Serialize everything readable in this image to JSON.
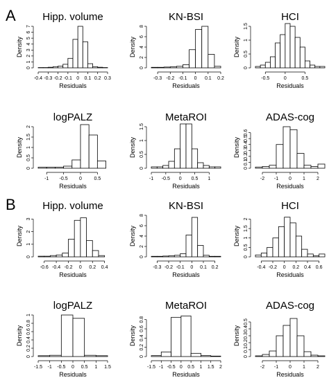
{
  "panels": [
    {
      "letter": "A",
      "charts": [
        0,
        1,
        2,
        3,
        4,
        5
      ]
    },
    {
      "letter": "B",
      "charts": [
        6,
        7,
        8,
        9,
        10,
        11
      ]
    }
  ],
  "chart_data": [
    {
      "panel": "A",
      "type": "bar",
      "title": "Hipp. volume",
      "xlabel": "Residuals",
      "ylabel": "Density",
      "xlim": [
        -0.4,
        0.3
      ],
      "ylim": [
        0,
        7
      ],
      "xticks": [
        -0.4,
        -0.3,
        -0.2,
        -0.1,
        0.0,
        0.1,
        0.2,
        0.3
      ],
      "yticks": [
        0,
        1,
        2,
        3,
        4,
        5,
        6,
        7
      ],
      "bin_edges": [
        -0.4,
        -0.35,
        -0.3,
        -0.25,
        -0.2,
        -0.15,
        -0.1,
        -0.05,
        0.0,
        0.05,
        0.1,
        0.15,
        0.2,
        0.25,
        0.3
      ],
      "values": [
        0.05,
        0.05,
        0.1,
        0.2,
        0.3,
        0.6,
        1.6,
        4.8,
        7.0,
        4.4,
        0.7,
        0.2,
        0.1,
        0.05
      ]
    },
    {
      "panel": "A",
      "type": "bar",
      "title": "KN-BSI",
      "xlabel": "Residuals",
      "ylabel": "Density",
      "xlim": [
        -0.35,
        0.2
      ],
      "ylim": [
        0,
        8
      ],
      "xticks": [
        -0.3,
        -0.2,
        -0.1,
        0.0,
        0.1,
        0.2
      ],
      "yticks": [
        0,
        2,
        4,
        6,
        8
      ],
      "bin_edges": [
        -0.35,
        -0.3,
        -0.25,
        -0.2,
        -0.15,
        -0.1,
        -0.05,
        0.0,
        0.05,
        0.1,
        0.15,
        0.2
      ],
      "values": [
        0.1,
        0.1,
        0.15,
        0.2,
        0.3,
        0.6,
        3.5,
        7.4,
        8.0,
        2.6,
        0.3
      ]
    },
    {
      "panel": "A",
      "type": "bar",
      "title": "HCI",
      "xlabel": "Residuals",
      "ylabel": "Density",
      "xlim": [
        -0.75,
        1.0
      ],
      "ylim": [
        0,
        1.5
      ],
      "xticks": [
        -0.5,
        0.0,
        0.5
      ],
      "yticks": [
        0.0,
        0.5,
        1.0,
        1.5
      ],
      "bin_edges": [
        -0.75,
        -0.625,
        -0.5,
        -0.375,
        -0.25,
        -0.125,
        0.0,
        0.125,
        0.25,
        0.375,
        0.5,
        0.625,
        0.75,
        0.875,
        1.0
      ],
      "values": [
        0.05,
        0.1,
        0.2,
        0.4,
        0.9,
        1.2,
        1.6,
        1.5,
        1.1,
        0.75,
        0.25,
        0.1,
        0.05,
        0.05
      ]
    },
    {
      "panel": "A",
      "type": "bar",
      "title": "logPALZ",
      "xlabel": "Residuals",
      "ylabel": "Density",
      "xlim": [
        -1.25,
        0.8
      ],
      "ylim": [
        0,
        2.0
      ],
      "xticks": [
        -1.0,
        -0.5,
        0.0,
        0.5
      ],
      "yticks": [
        0.0,
        0.5,
        1.0,
        1.5,
        2.0
      ],
      "bin_edges": [
        -1.25,
        -1.0,
        -0.75,
        -0.5,
        -0.25,
        0.0,
        0.25,
        0.5,
        0.75
      ],
      "values": [
        0.05,
        0.05,
        0.05,
        0.1,
        0.4,
        2.1,
        1.6,
        0.35
      ]
    },
    {
      "panel": "A",
      "type": "bar",
      "title": "MetaROI",
      "xlabel": "Residuals",
      "ylabel": "Density",
      "xlim": [
        -1.0,
        1.4
      ],
      "ylim": [
        0,
        1.5
      ],
      "xticks": [
        -1.0,
        -0.5,
        0.0,
        0.5,
        1.0
      ],
      "yticks": [
        0.0,
        0.5,
        1.0,
        1.5
      ],
      "bin_edges": [
        -1.0,
        -0.8,
        -0.6,
        -0.4,
        -0.2,
        0.0,
        0.2,
        0.4,
        0.6,
        0.8,
        1.0,
        1.2,
        1.4
      ],
      "values": [
        0.05,
        0.05,
        0.1,
        0.25,
        0.7,
        1.6,
        1.6,
        0.7,
        0.2,
        0.1,
        0.05,
        0.05
      ]
    },
    {
      "panel": "A",
      "type": "bar",
      "title": "ADAS-cog",
      "xlabel": "Residuals",
      "ylabel": "Density",
      "xlim": [
        -2.5,
        2.5
      ],
      "ylim": [
        0,
        0.7
      ],
      "xticks": [
        -2,
        -1,
        0,
        1,
        2
      ],
      "yticks": [
        0.0,
        0.1,
        0.2,
        0.3,
        0.4,
        0.5,
        0.6
      ],
      "bin_edges": [
        -2.5,
        -2.0,
        -1.5,
        -1.0,
        -0.5,
        0.0,
        0.5,
        1.0,
        1.5,
        2.0,
        2.5
      ],
      "values": [
        0.02,
        0.03,
        0.05,
        0.4,
        0.7,
        0.65,
        0.25,
        0.05,
        0.03,
        0.07
      ]
    },
    {
      "panel": "B",
      "type": "bar",
      "title": "Hipp. volume",
      "xlabel": "Residuals",
      "ylabel": "Density",
      "xlim": [
        -0.7,
        0.45
      ],
      "ylim": [
        0,
        3.3
      ],
      "xticks": [
        -0.6,
        -0.4,
        -0.2,
        0.0,
        0.2,
        0.4
      ],
      "yticks": [
        0,
        1,
        2,
        3
      ],
      "bin_edges": [
        -0.7,
        -0.6,
        -0.5,
        -0.4,
        -0.3,
        -0.2,
        -0.1,
        0.0,
        0.1,
        0.2,
        0.3,
        0.4
      ],
      "values": [
        0.05,
        0.05,
        0.1,
        0.15,
        0.3,
        1.4,
        2.9,
        3.1,
        1.3,
        0.5,
        0.1
      ]
    },
    {
      "panel": "B",
      "type": "bar",
      "title": "KN-BSI",
      "xlabel": "Residuals",
      "ylabel": "Density",
      "xlim": [
        -0.35,
        0.25
      ],
      "ylim": [
        0,
        8
      ],
      "xticks": [
        -0.3,
        -0.2,
        -0.1,
        0.0,
        0.1,
        0.2
      ],
      "yticks": [
        0,
        2,
        4,
        6,
        8
      ],
      "bin_edges": [
        -0.35,
        -0.3,
        -0.25,
        -0.2,
        -0.15,
        -0.1,
        -0.05,
        0.0,
        0.05,
        0.1,
        0.15,
        0.2,
        0.25
      ],
      "values": [
        0.1,
        0.1,
        0.15,
        0.2,
        0.3,
        0.6,
        4.2,
        7.6,
        2.2,
        0.3,
        0.1,
        0.1
      ]
    },
    {
      "panel": "B",
      "type": "bar",
      "title": "HCI",
      "xlabel": "Residuals",
      "ylabel": "Density",
      "xlim": [
        -0.5,
        0.7
      ],
      "ylim": [
        0,
        2.2
      ],
      "xticks": [
        -0.4,
        -0.2,
        0.0,
        0.2,
        0.4,
        0.6
      ],
      "yticks": [
        0.0,
        0.5,
        1.0,
        1.5,
        2.0
      ],
      "bin_edges": [
        -0.5,
        -0.4,
        -0.3,
        -0.2,
        -0.1,
        0.0,
        0.1,
        0.2,
        0.3,
        0.4,
        0.5,
        0.6,
        0.7
      ],
      "values": [
        0.1,
        0.2,
        0.5,
        1.0,
        1.6,
        2.1,
        1.8,
        1.1,
        0.4,
        0.15,
        0.05,
        0.15
      ]
    },
    {
      "panel": "B",
      "type": "bar",
      "title": "logPALZ",
      "xlabel": "Residuals",
      "ylabel": "Density",
      "xlim": [
        -1.5,
        1.5
      ],
      "ylim": [
        0,
        1.0
      ],
      "xticks": [
        -1.5,
        -1.0,
        -0.5,
        0.0,
        0.5,
        1.0,
        1.5
      ],
      "yticks": [
        0.0,
        0.2,
        0.4,
        0.6,
        0.8,
        1.0
      ],
      "bin_edges": [
        -1.5,
        -1.0,
        -0.5,
        0.0,
        0.5,
        1.0,
        1.5
      ],
      "values": [
        0.02,
        0.03,
        1.0,
        0.92,
        0.03,
        0.02
      ]
    },
    {
      "panel": "B",
      "type": "bar",
      "title": "MetaROI",
      "xlabel": "Residuals",
      "ylabel": "Density",
      "xlim": [
        -1.5,
        2.0
      ],
      "ylim": [
        0,
        0.9
      ],
      "xticks": [
        -1.5,
        -1.0,
        -0.5,
        0.0,
        0.5,
        1.0,
        1.5,
        2.0
      ],
      "yticks": [
        0.0,
        0.2,
        0.4,
        0.6,
        0.8
      ],
      "bin_edges": [
        -1.5,
        -1.0,
        -0.5,
        0.0,
        0.5,
        1.0,
        1.5,
        2.0
      ],
      "values": [
        0.02,
        0.1,
        0.85,
        0.88,
        0.07,
        0.02,
        0.01
      ]
    },
    {
      "panel": "B",
      "type": "bar",
      "title": "ADAS-cog",
      "xlabel": "Residuals",
      "ylabel": "Density",
      "xlim": [
        -2.5,
        2.5
      ],
      "ylim": [
        0,
        0.6
      ],
      "xticks": [
        -2,
        -1,
        0,
        1,
        2
      ],
      "yticks": [
        0.0,
        0.1,
        0.2,
        0.3,
        0.4,
        0.5
      ],
      "bin_edges": [
        -2.5,
        -2.0,
        -1.5,
        -1.0,
        -0.5,
        0.0,
        0.5,
        1.0,
        1.5,
        2.0,
        2.5
      ],
      "values": [
        0.01,
        0.03,
        0.08,
        0.3,
        0.45,
        0.55,
        0.3,
        0.07,
        0.02,
        0.01
      ]
    }
  ]
}
